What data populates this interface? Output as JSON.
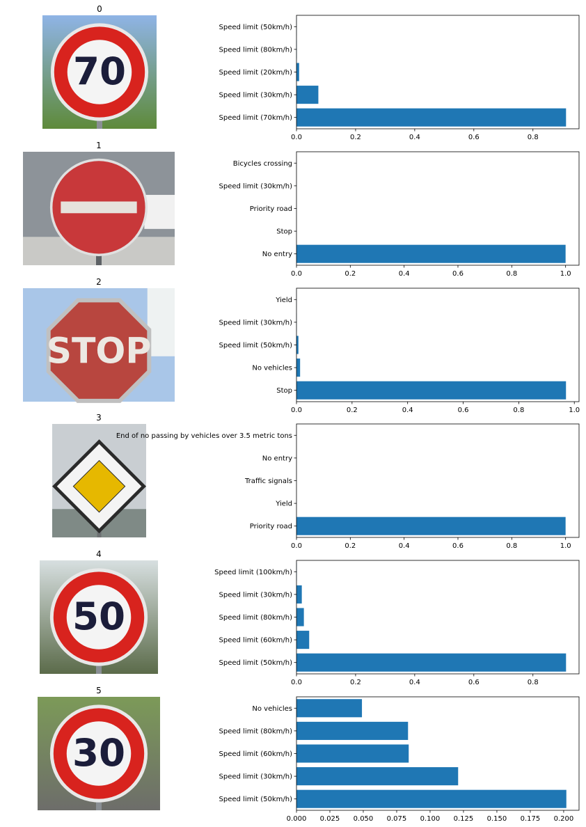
{
  "colors": {
    "bar": "#1f77b4",
    "axis": "#000000",
    "background": "#ffffff"
  },
  "chart_data": [
    {
      "type": "bar",
      "orientation": "horizontal",
      "title": "0",
      "image": "speed-limit-70-sign",
      "image_text": "70",
      "categories": [
        "Speed limit (70km/h)",
        "Speed limit (30km/h)",
        "Speed limit (20km/h)",
        "Speed limit (80km/h)",
        "Speed limit (50km/h)"
      ],
      "values": [
        0.912,
        0.074,
        0.009,
        0.001,
        0.0005
      ],
      "xlim": [
        0,
        0.956
      ],
      "xticks": [
        "0.0",
        "0.2",
        "0.4",
        "0.6",
        "0.8"
      ]
    },
    {
      "type": "bar",
      "orientation": "horizontal",
      "title": "1",
      "image": "no-entry-sign",
      "image_text": "",
      "categories": [
        "No entry",
        "Stop",
        "Priority road",
        "Speed limit (30km/h)",
        "Bicycles crossing"
      ],
      "values": [
        1.0,
        0.0001,
        5e-05,
        2e-05,
        1e-05
      ],
      "xlim": [
        0,
        1.05
      ],
      "xticks": [
        "0.0",
        "0.2",
        "0.4",
        "0.6",
        "0.8",
        "1.0"
      ]
    },
    {
      "type": "bar",
      "orientation": "horizontal",
      "title": "2",
      "image": "stop-sign",
      "image_text": "STOP",
      "categories": [
        "Stop",
        "No vehicles",
        "Speed limit (50km/h)",
        "Speed limit (30km/h)",
        "Yield"
      ],
      "values": [
        0.97,
        0.013,
        0.007,
        0.0005,
        0.0002
      ],
      "xlim": [
        0,
        1.017
      ],
      "xticks": [
        "0.0",
        "0.2",
        "0.4",
        "0.6",
        "0.8",
        "1.0"
      ]
    },
    {
      "type": "bar",
      "orientation": "horizontal",
      "title": "3",
      "image": "priority-road-sign",
      "image_text": "",
      "categories": [
        "Priority road",
        "Yield",
        "Traffic signals",
        "No entry",
        "End of no passing by vehicles over 3.5 metric tons"
      ],
      "values": [
        1.0,
        5e-05,
        3e-05,
        2e-05,
        1e-05
      ],
      "xlim": [
        0,
        1.05
      ],
      "xticks": [
        "0.0",
        "0.2",
        "0.4",
        "0.6",
        "0.8",
        "1.0"
      ]
    },
    {
      "type": "bar",
      "orientation": "horizontal",
      "title": "4",
      "image": "speed-limit-50-sign",
      "image_text": "50",
      "categories": [
        "Speed limit (50km/h)",
        "Speed limit (60km/h)",
        "Speed limit (80km/h)",
        "Speed limit (30km/h)",
        "Speed limit (100km/h)"
      ],
      "values": [
        0.912,
        0.043,
        0.025,
        0.018,
        0.001
      ],
      "xlim": [
        0,
        0.956
      ],
      "xticks": [
        "0.0",
        "0.2",
        "0.4",
        "0.6",
        "0.8"
      ]
    },
    {
      "type": "bar",
      "orientation": "horizontal",
      "title": "5",
      "image": "speed-limit-30-sign",
      "image_text": "30",
      "categories": [
        "Speed limit (50km/h)",
        "Speed limit (30km/h)",
        "Speed limit (60km/h)",
        "Speed limit (80km/h)",
        "No vehicles"
      ],
      "values": [
        0.202,
        0.121,
        0.084,
        0.0835,
        0.049
      ],
      "xlim": [
        0,
        0.2115
      ],
      "xticks": [
        "0.000",
        "0.025",
        "0.050",
        "0.075",
        "0.100",
        "0.125",
        "0.150",
        "0.175",
        "0.200"
      ]
    }
  ]
}
